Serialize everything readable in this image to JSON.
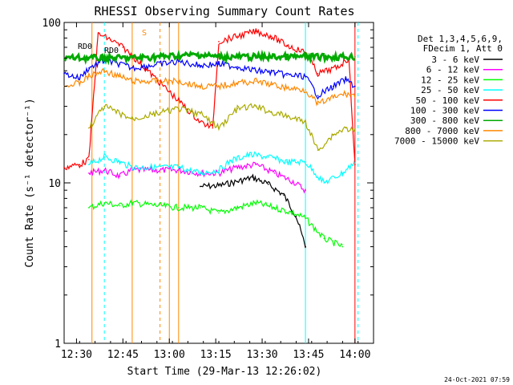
{
  "chart_data": {
    "type": "line",
    "title": "RHESSI Observing Summary Count Rates",
    "xlabel": "Start Time (29-Mar-13 12:26:02)",
    "ylabel": "Count Rate (s⁻¹ detector⁻¹)",
    "yscale": "log",
    "ylim": [
      1,
      100
    ],
    "xlim": [
      "12:26",
      "14:06"
    ],
    "x_ticks": [
      "12:30",
      "12:45",
      "13:00",
      "13:15",
      "13:30",
      "13:45",
      "14:00"
    ],
    "y_ticks": [
      "1",
      "10",
      "100"
    ],
    "legend_header": [
      "Det 1,3,4,5,6,9,",
      "FDecim 1, Att 0"
    ],
    "legend_position": "right",
    "series": [
      {
        "name": "3 - 6 keV",
        "color": "#000000",
        "points": [
          [
            "13:10",
            9.5
          ],
          [
            "13:16",
            9.6
          ],
          [
            "13:22",
            10.2
          ],
          [
            "13:27",
            10.8
          ],
          [
            "13:32",
            9.8
          ],
          [
            "13:37",
            8.4
          ],
          [
            "13:41",
            6.2
          ],
          [
            "13:44",
            4.0
          ]
        ]
      },
      {
        "name": "6 - 12 keV",
        "color": "#ff00ff",
        "points": [
          [
            "12:34",
            11.5
          ],
          [
            "12:39",
            12.0
          ],
          [
            "12:44",
            11.0
          ],
          [
            "12:48",
            12.0
          ],
          [
            "13:03",
            12.0
          ],
          [
            "13:10",
            11.5
          ],
          [
            "13:16",
            11.5
          ],
          [
            "13:22",
            12.5
          ],
          [
            "13:28",
            13.0
          ],
          [
            "13:34",
            11.5
          ],
          [
            "13:40",
            10.2
          ],
          [
            "13:44",
            9.0
          ]
        ]
      },
      {
        "name": "12 - 25 keV",
        "color": "#00ff00",
        "points": [
          [
            "12:34",
            7.0
          ],
          [
            "12:39",
            7.5
          ],
          [
            "12:44",
            7.2
          ],
          [
            "12:48",
            7.5
          ],
          [
            "13:03",
            7.0
          ],
          [
            "13:10",
            7.0
          ],
          [
            "13:16",
            6.5
          ],
          [
            "13:22",
            7.0
          ],
          [
            "13:28",
            7.5
          ],
          [
            "13:34",
            7.0
          ],
          [
            "13:40",
            6.5
          ],
          [
            "13:44",
            6.0
          ],
          [
            "13:50",
            4.5
          ],
          [
            "13:56",
            4.0
          ]
        ]
      },
      {
        "name": "25 - 50 keV",
        "color": "#00ffff",
        "points": [
          [
            "12:34",
            13.0
          ],
          [
            "12:39",
            14.5
          ],
          [
            "12:44",
            13.5
          ],
          [
            "12:48",
            12.5
          ],
          [
            "13:03",
            12.5
          ],
          [
            "13:10",
            11.5
          ],
          [
            "13:16",
            12.0
          ],
          [
            "13:20",
            13.8
          ],
          [
            "13:26",
            15.0
          ],
          [
            "13:32",
            14.5
          ],
          [
            "13:38",
            13.5
          ],
          [
            "13:44",
            13.5
          ],
          [
            "13:50",
            10.0
          ],
          [
            "13:56",
            11.5
          ],
          [
            "14:00",
            13.5
          ]
        ]
      },
      {
        "name": "50 - 100 keV",
        "color": "#ff0000",
        "points": [
          [
            "12:26",
            12.5
          ],
          [
            "12:31",
            13.0
          ],
          [
            "12:34",
            14.0
          ],
          [
            "12:37",
            85.0
          ],
          [
            "12:41",
            78.0
          ],
          [
            "12:45",
            70.0
          ],
          [
            "12:48",
            62.0
          ],
          [
            "13:10",
            24.0
          ],
          [
            "13:14",
            22.0
          ],
          [
            "13:16",
            76.0
          ],
          [
            "13:22",
            82.0
          ],
          [
            "13:28",
            88.0
          ],
          [
            "13:33",
            82.0
          ],
          [
            "13:38",
            72.0
          ],
          [
            "13:44",
            65.0
          ],
          [
            "13:48",
            48.0
          ],
          [
            "13:54",
            52.0
          ],
          [
            "13:58",
            60.0
          ],
          [
            "14:00",
            13.0
          ]
        ]
      },
      {
        "name": "100 - 300 keV",
        "color": "#0000ff",
        "points": [
          [
            "12:26",
            48.0
          ],
          [
            "12:31",
            45.0
          ],
          [
            "12:34",
            52.0
          ],
          [
            "12:39",
            58.0
          ],
          [
            "12:44",
            55.0
          ],
          [
            "12:48",
            52.0
          ],
          [
            "13:03",
            57.0
          ],
          [
            "13:10",
            54.0
          ],
          [
            "13:16",
            55.0
          ],
          [
            "13:22",
            53.0
          ],
          [
            "13:28",
            50.0
          ],
          [
            "13:33",
            49.0
          ],
          [
            "13:38",
            47.0
          ],
          [
            "13:44",
            46.0
          ],
          [
            "13:48",
            35.0
          ],
          [
            "13:53",
            40.0
          ],
          [
            "13:57",
            44.0
          ],
          [
            "14:00",
            40.0
          ]
        ]
      },
      {
        "name": "300 - 800 keV",
        "color": "#00aa00",
        "points": [
          [
            "12:26",
            60.0
          ],
          [
            "12:48",
            60.0
          ],
          [
            "13:03",
            62.0
          ],
          [
            "13:10",
            63.0
          ],
          [
            "13:16",
            61.0
          ],
          [
            "13:30",
            61.0
          ],
          [
            "13:44",
            61.0
          ],
          [
            "14:00",
            61.0
          ]
        ]
      },
      {
        "name": "800 - 7000 keV",
        "color": "#ff8800",
        "points": [
          [
            "12:26",
            40.0
          ],
          [
            "12:31",
            42.0
          ],
          [
            "12:34",
            46.0
          ],
          [
            "12:39",
            50.0
          ],
          [
            "12:44",
            46.0
          ],
          [
            "12:48",
            43.0
          ],
          [
            "13:03",
            43.0
          ],
          [
            "13:10",
            40.0
          ],
          [
            "13:16",
            40.0
          ],
          [
            "13:22",
            42.0
          ],
          [
            "13:28",
            43.0
          ],
          [
            "13:33",
            41.0
          ],
          [
            "13:38",
            39.0
          ],
          [
            "13:44",
            38.0
          ],
          [
            "13:48",
            31.0
          ],
          [
            "13:53",
            34.0
          ],
          [
            "13:57",
            36.0
          ],
          [
            "14:00",
            35.0
          ]
        ]
      },
      {
        "name": "7000 - 15000 keV",
        "color": "#aaaa00",
        "points": [
          [
            "12:34",
            22.0
          ],
          [
            "12:39",
            30.0
          ],
          [
            "12:44",
            27.0
          ],
          [
            "12:48",
            25.0
          ],
          [
            "13:03",
            29.0
          ],
          [
            "13:10",
            27.0
          ],
          [
            "13:16",
            22.0
          ],
          [
            "13:22",
            29.0
          ],
          [
            "13:28",
            30.0
          ],
          [
            "13:33",
            27.5
          ],
          [
            "13:38",
            26.0
          ],
          [
            "13:44",
            24.0
          ],
          [
            "13:48",
            16.0
          ],
          [
            "13:53",
            20.0
          ],
          [
            "13:57",
            22.0
          ],
          [
            "14:00",
            21.0
          ]
        ]
      }
    ],
    "annotations": [
      "RD0",
      "RD0",
      "S"
    ],
    "timestamp": "24-Oct-2021 07:59"
  }
}
